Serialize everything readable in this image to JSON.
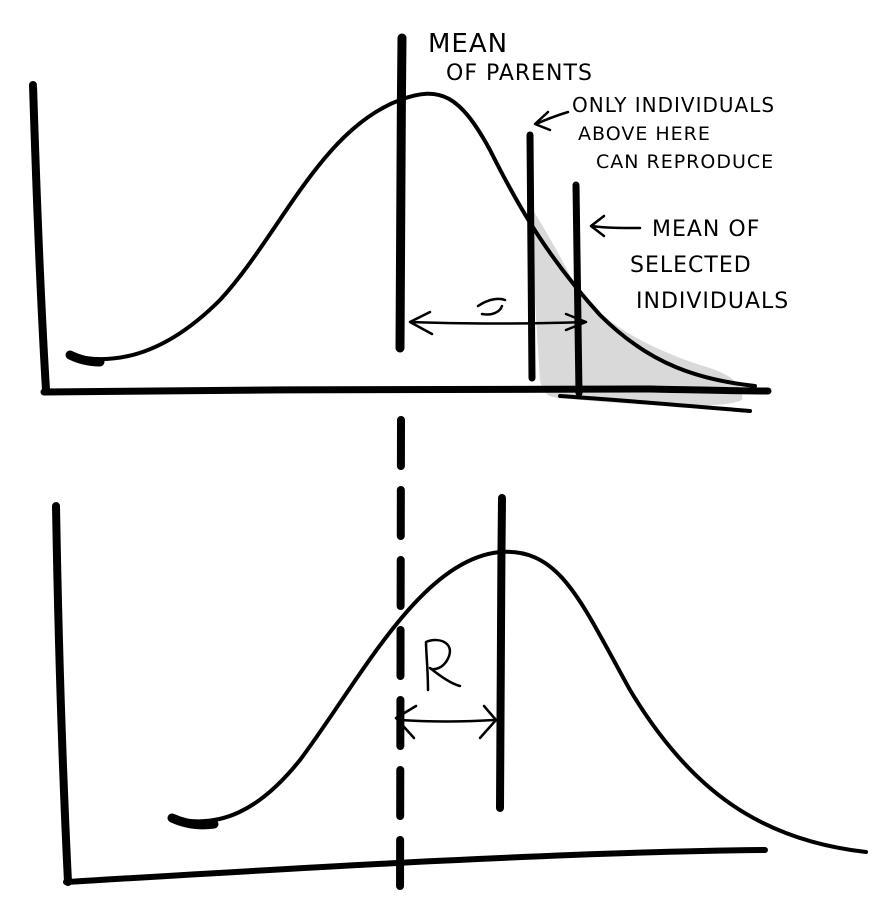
{
  "colors": {
    "ink": "#000000",
    "shade": "#d9d9d9",
    "background": "#ffffff"
  },
  "top_panel": {
    "label_mean_parents_line1": "MEAN",
    "label_mean_parents_line2": "OF PARENTS",
    "label_threshold_line1": "ONLY INDIVIDUALS",
    "label_threshold_line2": "ABOVE HERE",
    "label_threshold_line3": "CAN REPRODUCE",
    "label_selected_mean_line1": "MEAN OF",
    "label_selected_mean_line2": "SELECTED",
    "label_selected_mean_line3": "INDIVIDUALS",
    "selection_differential_label": "S"
  },
  "bottom_panel": {
    "response_label": "R"
  }
}
